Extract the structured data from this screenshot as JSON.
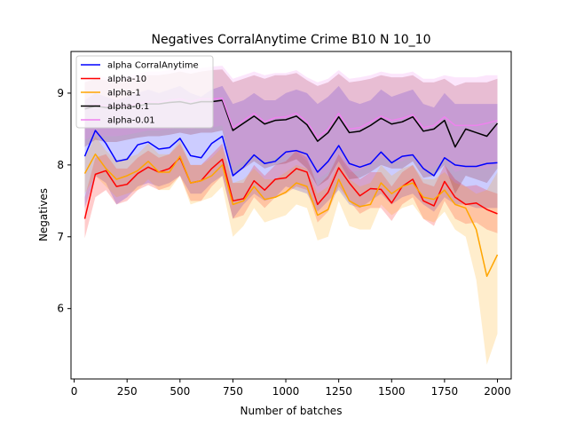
{
  "chart_data": {
    "type": "line",
    "title": "Negatives CorralAnytime Crime B10 N 10_10",
    "xlabel": "Number of batches",
    "ylabel": "Negatives",
    "xlim": [
      -15,
      2065
    ],
    "ylim": [
      5.02,
      9.58
    ],
    "xticks": [
      0,
      250,
      500,
      750,
      1000,
      1250,
      1500,
      1750,
      2000
    ],
    "xtick_labels": [
      "0",
      "250",
      "500",
      "750",
      "1000",
      "1250",
      "1500",
      "1750",
      "2000"
    ],
    "yticks": [
      6,
      7,
      8,
      9
    ],
    "ytick_labels": [
      "6",
      "7",
      "8",
      "9"
    ],
    "grid": false,
    "legend_position": "top-left",
    "x": [
      50,
      100,
      150,
      200,
      250,
      300,
      350,
      400,
      450,
      500,
      550,
      600,
      650,
      700,
      750,
      800,
      850,
      900,
      950,
      1000,
      1050,
      1100,
      1150,
      1200,
      1250,
      1300,
      1350,
      1400,
      1450,
      1500,
      1550,
      1600,
      1650,
      1700,
      1750,
      1800,
      1850,
      1900,
      1950,
      2000
    ],
    "series": [
      {
        "name": "alpha CorralAnytime",
        "color": "#0000ff",
        "band_color": "#0000ff",
        "values": [
          8.12,
          8.48,
          8.3,
          8.05,
          8.08,
          8.28,
          8.32,
          8.22,
          8.24,
          8.37,
          8.13,
          8.1,
          8.3,
          8.4,
          7.85,
          7.97,
          8.14,
          8.02,
          8.05,
          8.18,
          8.2,
          8.15,
          7.9,
          8.05,
          8.27,
          8.02,
          7.97,
          8.02,
          8.18,
          8.03,
          8.12,
          8.14,
          7.95,
          7.85,
          8.1,
          8.0,
          7.98,
          7.98,
          8.02,
          8.03
        ],
        "upper": [
          8.9,
          9.0,
          8.95,
          8.9,
          8.95,
          9.0,
          9.05,
          9.0,
          9.05,
          9.1,
          9.0,
          8.95,
          9.05,
          9.1,
          8.85,
          8.9,
          9.0,
          8.9,
          8.9,
          9.0,
          9.05,
          9.0,
          8.85,
          8.95,
          9.1,
          8.9,
          8.85,
          8.9,
          9.05,
          8.95,
          9.0,
          9.05,
          8.85,
          8.8,
          9.0,
          8.85,
          8.85,
          8.85,
          8.85,
          8.85
        ],
        "lower": [
          7.4,
          7.85,
          7.75,
          7.45,
          7.55,
          7.7,
          7.75,
          7.7,
          7.75,
          7.85,
          7.6,
          7.6,
          7.75,
          7.85,
          7.25,
          7.45,
          7.6,
          7.5,
          7.55,
          7.7,
          7.65,
          7.6,
          7.35,
          7.5,
          7.65,
          7.45,
          7.4,
          7.5,
          7.6,
          7.45,
          7.55,
          7.6,
          7.45,
          7.35,
          7.55,
          7.45,
          7.45,
          7.4,
          7.4,
          7.4
        ]
      },
      {
        "name": "alpha-10",
        "color": "#ff0000",
        "band_color": "#ff0000",
        "values": [
          7.25,
          7.87,
          7.92,
          7.7,
          7.73,
          7.88,
          7.97,
          7.9,
          7.95,
          8.1,
          7.75,
          7.78,
          7.95,
          8.08,
          7.5,
          7.53,
          7.78,
          7.65,
          7.8,
          7.82,
          7.95,
          7.9,
          7.45,
          7.62,
          7.96,
          7.75,
          7.57,
          7.67,
          7.66,
          7.47,
          7.7,
          7.8,
          7.5,
          7.43,
          7.77,
          7.55,
          7.45,
          7.47,
          7.38,
          7.32
        ],
        "upper": [
          7.55,
          8.1,
          8.15,
          7.95,
          7.95,
          8.1,
          8.2,
          8.1,
          8.15,
          8.3,
          8.0,
          8.0,
          8.15,
          8.3,
          7.75,
          7.75,
          8.0,
          7.85,
          8.0,
          8.05,
          8.2,
          8.1,
          7.7,
          7.85,
          8.15,
          7.95,
          7.8,
          7.9,
          7.9,
          7.7,
          7.9,
          8.0,
          7.75,
          7.7,
          8.0,
          7.8,
          7.7,
          7.72,
          7.65,
          7.6
        ],
        "lower": [
          6.98,
          7.55,
          7.65,
          7.45,
          7.5,
          7.65,
          7.72,
          7.65,
          7.7,
          7.85,
          7.5,
          7.5,
          7.7,
          7.85,
          7.25,
          7.3,
          7.55,
          7.4,
          7.55,
          7.6,
          7.7,
          7.65,
          7.2,
          7.35,
          7.7,
          7.5,
          7.32,
          7.4,
          7.4,
          7.22,
          7.45,
          7.55,
          7.25,
          7.15,
          7.5,
          7.25,
          7.18,
          7.2,
          7.1,
          7.05
        ]
      },
      {
        "name": "alpha-1",
        "color": "#ffa500",
        "band_color": "#ffa500",
        "values": [
          7.88,
          8.15,
          7.95,
          7.8,
          7.85,
          7.92,
          8.05,
          7.9,
          7.9,
          8.12,
          7.75,
          7.78,
          7.85,
          8.0,
          7.45,
          7.5,
          7.7,
          7.52,
          7.55,
          7.62,
          7.75,
          7.7,
          7.3,
          7.38,
          7.8,
          7.5,
          7.42,
          7.45,
          7.75,
          7.6,
          7.7,
          7.75,
          7.55,
          7.52,
          7.65,
          7.45,
          7.4,
          7.1,
          6.45,
          6.75
        ],
        "upper": [
          8.1,
          8.4,
          8.2,
          8.05,
          8.1,
          8.15,
          8.3,
          8.15,
          8.15,
          8.35,
          8.0,
          8.0,
          8.1,
          8.25,
          7.75,
          7.8,
          7.95,
          7.8,
          7.8,
          7.9,
          8.0,
          7.95,
          7.6,
          7.7,
          8.05,
          7.8,
          7.7,
          7.75,
          8.0,
          7.85,
          7.95,
          8.0,
          7.8,
          7.8,
          7.9,
          7.75,
          7.7,
          7.6,
          7.65,
          7.9
        ],
        "lower": [
          7.6,
          7.85,
          7.7,
          7.55,
          7.6,
          7.65,
          7.8,
          7.65,
          7.65,
          7.85,
          7.45,
          7.5,
          7.55,
          7.7,
          7.0,
          7.15,
          7.4,
          7.2,
          7.25,
          7.3,
          7.45,
          7.4,
          6.95,
          7.0,
          7.5,
          7.15,
          7.1,
          7.1,
          7.45,
          7.3,
          7.4,
          7.45,
          7.25,
          7.2,
          7.35,
          7.1,
          7.0,
          6.4,
          5.22,
          5.65
        ]
      },
      {
        "name": "alpha-0.1",
        "color": "#000000",
        "band_color": "#800000",
        "values": [
          8.78,
          8.82,
          8.8,
          8.8,
          8.8,
          8.82,
          8.85,
          8.85,
          8.87,
          8.88,
          8.85,
          8.88,
          8.88,
          8.9,
          8.48,
          8.58,
          8.68,
          8.57,
          8.62,
          8.63,
          8.68,
          8.56,
          8.33,
          8.45,
          8.67,
          8.45,
          8.47,
          8.55,
          8.65,
          8.57,
          8.6,
          8.67,
          8.47,
          8.5,
          8.62,
          8.25,
          8.5,
          8.45,
          8.4,
          8.58
        ],
        "upper": [
          9.15,
          9.2,
          9.18,
          9.18,
          9.2,
          9.22,
          9.25,
          9.25,
          9.27,
          9.3,
          9.27,
          9.3,
          9.32,
          9.33,
          9.15,
          9.2,
          9.25,
          9.2,
          9.25,
          9.25,
          9.28,
          9.18,
          9.1,
          9.15,
          9.27,
          9.15,
          9.17,
          9.2,
          9.25,
          9.22,
          9.22,
          9.25,
          9.15,
          9.15,
          9.2,
          9.1,
          9.15,
          9.15,
          9.15,
          9.2
        ],
        "lower": [
          8.25,
          8.35,
          8.32,
          8.32,
          8.35,
          8.38,
          8.4,
          8.4,
          8.42,
          8.45,
          8.42,
          8.45,
          8.45,
          8.48,
          7.85,
          7.95,
          8.05,
          7.95,
          8.0,
          8.02,
          8.08,
          7.95,
          7.7,
          7.8,
          8.05,
          7.8,
          7.82,
          7.9,
          8.0,
          7.95,
          7.95,
          8.05,
          7.82,
          7.85,
          8.0,
          7.6,
          7.85,
          7.8,
          7.75,
          7.95
        ]
      },
      {
        "name": "alpha-0.01",
        "color": "#ee82ee",
        "band_color": "#ee82ee",
        "values": [
          8.8,
          8.85,
          8.82,
          8.82,
          8.82,
          8.85,
          8.88,
          8.87,
          8.9,
          8.92,
          8.88,
          8.92,
          8.92,
          8.93,
          8.52,
          8.62,
          8.72,
          8.6,
          8.66,
          8.67,
          8.72,
          8.6,
          8.38,
          8.5,
          8.72,
          8.5,
          8.52,
          8.6,
          8.68,
          8.62,
          8.65,
          8.7,
          8.52,
          8.55,
          8.67,
          8.55,
          8.55,
          8.55,
          8.58,
          8.62
        ],
        "upper": [
          9.2,
          9.25,
          9.22,
          9.22,
          9.25,
          9.27,
          9.3,
          9.3,
          9.32,
          9.35,
          9.32,
          9.35,
          9.37,
          9.38,
          9.2,
          9.25,
          9.3,
          9.25,
          9.28,
          9.28,
          9.32,
          9.22,
          9.15,
          9.2,
          9.32,
          9.2,
          9.22,
          9.25,
          9.3,
          9.27,
          9.27,
          9.3,
          9.2,
          9.2,
          9.25,
          9.22,
          9.22,
          9.22,
          9.25,
          9.25
        ],
        "lower": [
          8.35,
          8.42,
          8.4,
          8.4,
          8.42,
          8.45,
          8.48,
          8.48,
          8.5,
          8.52,
          8.5,
          8.52,
          8.52,
          8.55,
          7.95,
          8.05,
          8.15,
          8.05,
          8.1,
          8.12,
          8.18,
          8.05,
          7.8,
          7.9,
          8.15,
          7.9,
          7.92,
          8.0,
          8.1,
          8.05,
          8.05,
          8.15,
          7.92,
          7.95,
          8.1,
          7.9,
          7.95,
          7.95,
          7.95,
          8.0
        ]
      }
    ]
  }
}
